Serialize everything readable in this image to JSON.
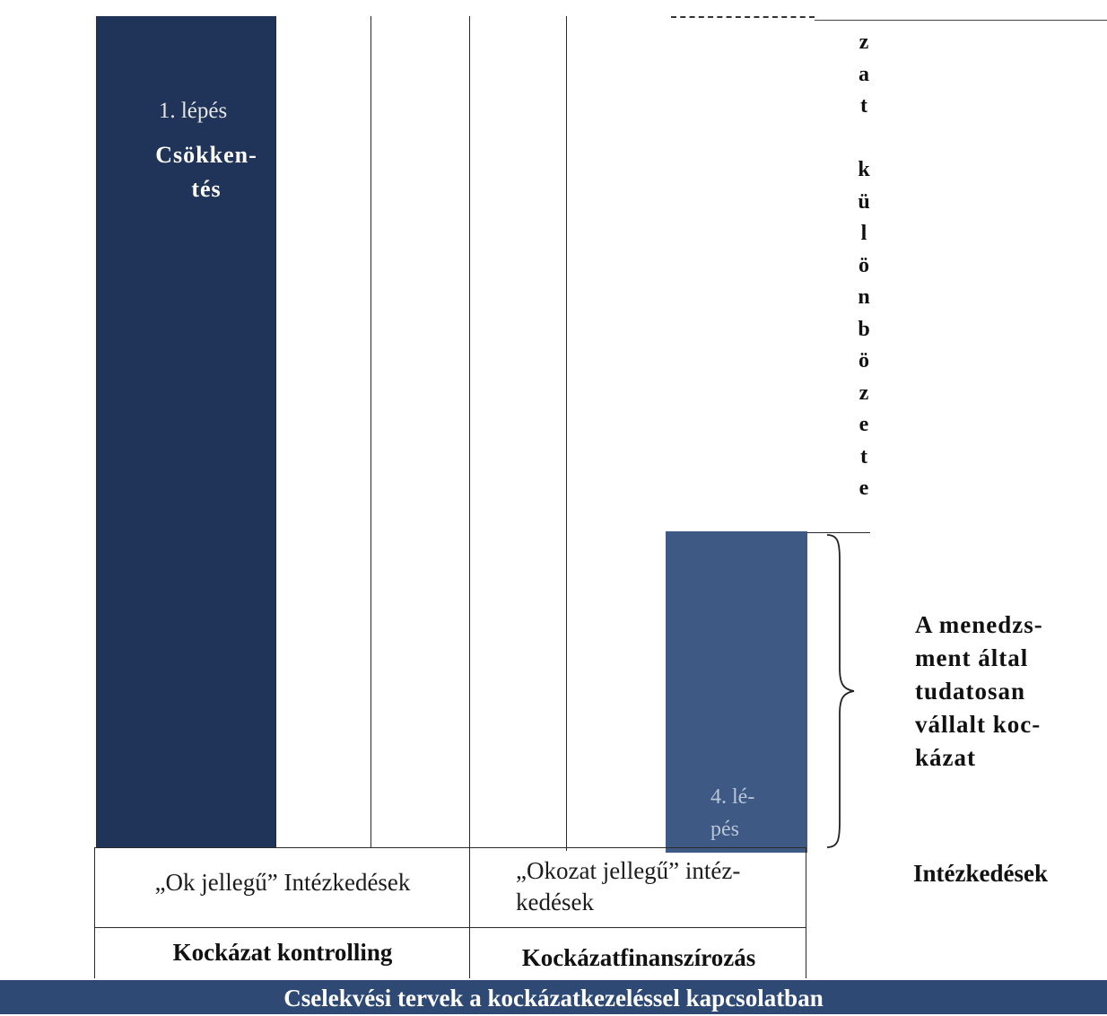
{
  "diagram": {
    "step1": {
      "number": "1. lépés",
      "name_line1": "Csökken-",
      "name_line2": "tés"
    },
    "step4": {
      "line1": "4. lé-",
      "line2": "pés"
    },
    "vertical_text_letters": [
      "z",
      "a",
      "t",
      "",
      "k",
      "ü",
      "l",
      "ö",
      "n",
      "b",
      "ö",
      "z",
      "e",
      "t",
      "e"
    ],
    "brace_note": [
      "A menedzs-",
      "ment által",
      "tudatosan",
      "vállalt koc-",
      "kázat"
    ],
    "measures": {
      "left": "„Ok jellegű” Intézkedések",
      "right_line1": "„Okozat jellegű” intéz-",
      "right_line2": "kedések",
      "side_label": "Intézkedések"
    },
    "categories": {
      "left": "Kockázat kontrolling",
      "right": "Kockázatfinanszírozás"
    },
    "footer": "Cselekvési tervek a kockázatkezeléssel kapcsolatban"
  }
}
